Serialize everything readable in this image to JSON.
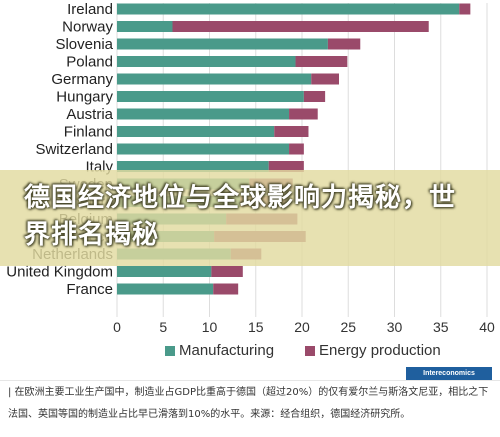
{
  "chart_data": {
    "type": "bar",
    "orientation": "horizontal",
    "stacked": true,
    "categories": [
      "Ireland",
      "Norway",
      "Slovenia",
      "Poland",
      "Germany",
      "Hungary",
      "Austria",
      "Finland",
      "Switzerland",
      "Italy",
      "Sweden",
      "Denmark",
      "Belgium",
      "Greece",
      "Netherlands",
      "United Kingdom",
      "France"
    ],
    "series": [
      {
        "name": "Manufacturing",
        "color": "#4a9a8a",
        "values": [
          37,
          6,
          22.8,
          19.3,
          21,
          20.2,
          18.6,
          17,
          18.6,
          16.4,
          14.3,
          13.3,
          11.8,
          10.5,
          12.3,
          10.2,
          10.4
        ]
      },
      {
        "name": "Energy production",
        "color": "#9a4a6a",
        "values": [
          1.2,
          27.7,
          3.5,
          5.6,
          3,
          2.3,
          3.1,
          3.7,
          1.6,
          3.8,
          4.7,
          5,
          7.7,
          9.9,
          3.3,
          3.4,
          2.7
        ]
      }
    ],
    "xlim": [
      0,
      40
    ],
    "xticks": [
      0,
      5,
      10,
      15,
      20,
      25,
      30,
      35,
      40
    ],
    "grid": true,
    "legend_position": "bottom"
  },
  "overlay": {
    "title": "德国经济地位与全球影响力揭秘，世界排名揭秘"
  },
  "badge": "Intereconomics",
  "caption": "| 在欧洲主要工业生产国中，制造业占GDP比重高于德国（超过20%）的仅有爱尔兰与斯洛文尼亚，相比之下法国、英国等国的制造业占比早已滑落到10%的水平。来源：经合组织，德国经济研究所。"
}
